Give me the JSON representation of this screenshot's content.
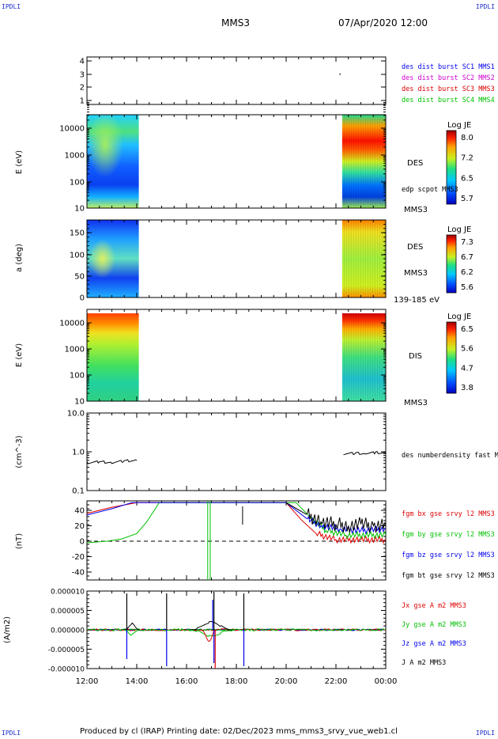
{
  "header": {
    "corner_tl": "IPDLI",
    "corner_tr": "IPDLI",
    "corner_bl": "IPDLI",
    "corner_br": "IPDLI",
    "spacecraft": "MMS3",
    "datetime": "07/Apr/2020 12:00"
  },
  "footer": {
    "text": "Produced by cl (IRAP)   Printing date: 02/Dec/2023   mms_mms3_srvy_vue_web1.cl"
  },
  "colors": {
    "blue": "#0000ee",
    "magenta": "#d000d0",
    "red": "#e00000",
    "green": "#00c000",
    "black": "#000000"
  },
  "chart_data": [
    {
      "type": "scatter",
      "panel": "availability",
      "yticks": [
        "4",
        "3",
        "2",
        "1"
      ],
      "legend": [
        "des dist burst SC1 MMS1",
        "des dist burst SC2 MMS2",
        "des dist burst SC3 MMS3",
        "des dist burst SC4 MMS4"
      ],
      "legend_colors": [
        "#0000ee",
        "#d000d0",
        "#e00000",
        "#00c000"
      ],
      "points": [
        {
          "x": "22:10",
          "y": 3.0
        }
      ]
    },
    {
      "type": "heatmap",
      "panel": "des-energy",
      "ylabel": "E (eV)",
      "yscale": "log",
      "ytick_labels": [
        "10000",
        "1000",
        "100",
        "10"
      ],
      "colorbar_title": "Log JE",
      "colorbar_ticks": [
        "8.0",
        "7.2",
        "6.5",
        "5.7"
      ],
      "labels": [
        "DES",
        "edp scpot MMS3",
        "MMS3"
      ],
      "data_intervals": [
        [
          "12:00",
          "14:05"
        ],
        [
          "22:15",
          "24:00"
        ]
      ]
    },
    {
      "type": "heatmap",
      "panel": "des-pitch-angle",
      "ylabel": "a (deg)",
      "ytick_labels": [
        "150",
        "100",
        "50",
        "0"
      ],
      "colorbar_title": "Log JE",
      "colorbar_ticks": [
        "7.3",
        "6.7",
        "6.2",
        "5.6"
      ],
      "labels": [
        "DES",
        "MMS3",
        "139-185 eV"
      ],
      "data_intervals": [
        [
          "12:00",
          "14:05"
        ],
        [
          "22:15",
          "24:00"
        ]
      ]
    },
    {
      "type": "heatmap",
      "panel": "dis-energy",
      "ylabel": "E (eV)",
      "yscale": "log",
      "ytick_labels": [
        "10000",
        "1000",
        "100",
        "10"
      ],
      "colorbar_title": "Log JE",
      "colorbar_ticks": [
        "6.5",
        "5.6",
        "4.7",
        "3.8"
      ],
      "labels": [
        "DIS",
        "MMS3"
      ],
      "data_intervals": [
        [
          "12:00",
          "14:05"
        ],
        [
          "22:15",
          "24:00"
        ]
      ]
    },
    {
      "type": "line",
      "panel": "density",
      "ylabel": "(cm^-3)",
      "yscale": "log",
      "ytick_labels": [
        "10.0",
        "1.0",
        "0.1"
      ],
      "series": [
        {
          "name": "des numberdensity fast M",
          "color": "#000000",
          "segments": [
            {
              "x": [
                12.0,
                12.5,
                13.0,
                13.5,
                14.0
              ],
              "y": [
                0.52,
                0.55,
                0.53,
                0.58,
                0.6
              ]
            },
            {
              "x": [
                22.3,
                22.8,
                23.2,
                23.6,
                24.0
              ],
              "y": [
                0.88,
                0.92,
                0.9,
                0.95,
                0.94
              ]
            }
          ]
        }
      ]
    },
    {
      "type": "line",
      "panel": "magnetic-field",
      "ylabel": "(nT)",
      "ytick_labels": [
        "40",
        "20",
        "0",
        "-20",
        "-40"
      ],
      "ylim": [
        -50,
        50
      ],
      "series": [
        {
          "name": "fgm bx gse srvy l2 MMS3",
          "color": "#e00000",
          "x": [
            12.0,
            13.0,
            14.0,
            20.0,
            20.6,
            21.2,
            22.0,
            23.0,
            24.0
          ],
          "y": [
            36,
            44,
            50,
            50,
            28,
            10,
            2,
            2,
            2
          ]
        },
        {
          "name": "fgm by gse srvy l2 MMS3",
          "color": "#00c000",
          "x": [
            12.0,
            12.8,
            13.4,
            14.0,
            14.4,
            14.9,
            20.4,
            21.0,
            21.6,
            22.4,
            23.2,
            24.0
          ],
          "y": [
            -2,
            0,
            3,
            10,
            25,
            50,
            50,
            30,
            14,
            8,
            8,
            8
          ]
        },
        {
          "name": "fgm bz gse srvy l2 MMS3",
          "color": "#0000ee",
          "x": [
            12.0,
            13.0,
            13.8,
            20.0,
            20.8,
            21.4,
            22.2,
            23.0,
            24.0
          ],
          "y": [
            34,
            42,
            50,
            50,
            30,
            20,
            16,
            14,
            16
          ]
        },
        {
          "name": "fgm bt gse srvy l2 MMS3",
          "color": "#000000",
          "x": [
            20.0,
            20.8,
            21.4,
            22.0,
            22.5,
            23.0,
            23.5,
            24.0
          ],
          "y": [
            50,
            35,
            25,
            22,
            20,
            22,
            20,
            22
          ]
        }
      ]
    },
    {
      "type": "line",
      "panel": "current-density",
      "ylabel": "(A/m2)",
      "ytick_labels": [
        "0.000010",
        "0.000005",
        "0.000000",
        "-0.000005",
        "-0.000010"
      ],
      "ylim": [
        -1e-05,
        1e-05
      ],
      "xtick_labels": [
        "12:00",
        "14:00",
        "16:00",
        "18:00",
        "20:00",
        "22:00",
        "00:00"
      ],
      "series": [
        {
          "name": "Jx gse A m2 MMS3",
          "color": "#e00000"
        },
        {
          "name": "Jy gse A m2 MMS3",
          "color": "#00c000"
        },
        {
          "name": "Jz gse A m2 MMS3",
          "color": "#0000ee"
        },
        {
          "name": "J A m2 MMS3",
          "color": "#000000"
        }
      ]
    }
  ]
}
